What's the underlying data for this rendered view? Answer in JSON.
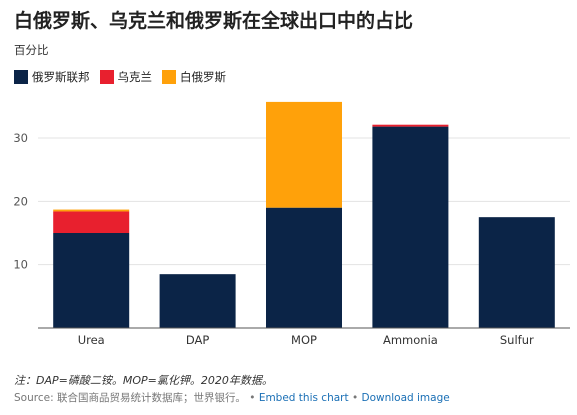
{
  "title": "白俄罗斯、乌克兰和俄罗斯在全球出口中的占比",
  "subtitle": "百分比",
  "note": "注：DAP=磷酸二铵。MOP=氯化钾。2020年数据。",
  "source": {
    "text": "Source: 联合国商品贸易统计数据库；世界银行。",
    "links": [
      "Embed this chart",
      "Download image"
    ],
    "separator": " • "
  },
  "chart_data": {
    "type": "bar",
    "stacked": true,
    "categories": [
      "Urea",
      "DAP",
      "MOP",
      "Ammonia",
      "Sulfur"
    ],
    "series": [
      {
        "name": "俄罗斯联邦",
        "color": "#0b2447",
        "values": [
          15.0,
          8.5,
          19.0,
          31.8,
          17.5
        ]
      },
      {
        "name": "乌克兰",
        "color": "#e8202e",
        "values": [
          3.4,
          0.0,
          0.0,
          0.3,
          0.0
        ]
      },
      {
        "name": "白俄罗斯",
        "color": "#ffa10a",
        "values": [
          0.3,
          0.0,
          16.7,
          0.0,
          0.0
        ]
      }
    ],
    "ylim": [
      0,
      36
    ],
    "yticks": [
      10,
      20,
      30
    ],
    "grid": true,
    "legend": "top-left"
  }
}
